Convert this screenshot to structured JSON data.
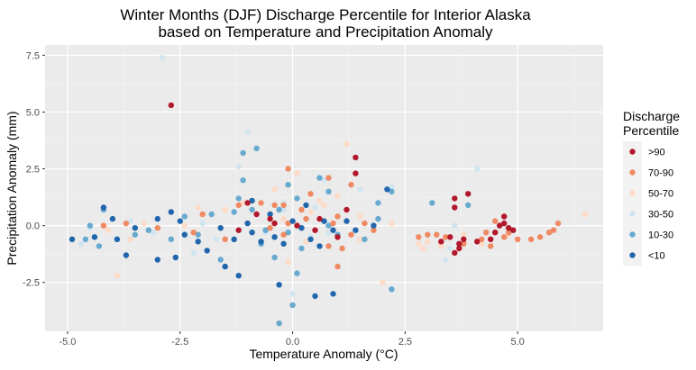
{
  "chart_data": {
    "type": "scatter",
    "title_line1": "Winter Months (DJF) Discharge Percentile for Interior Alaska",
    "title_line2": "based on Temperature and Precipitation Anomaly",
    "xlabel": "Temperature Anomaly (°C)",
    "ylabel": "Precipitation Anomaly (mm)",
    "xlim": [
      -5.5,
      6.9
    ],
    "ylim": [
      -4.65,
      7.95
    ],
    "x_ticks": [
      -5.0,
      -2.5,
      0.0,
      2.5,
      5.0
    ],
    "x_tick_labels": [
      "-5.0",
      "-2.5",
      "0.0",
      "2.5",
      "5.0"
    ],
    "y_ticks": [
      -2.5,
      0.0,
      2.5,
      5.0,
      7.5
    ],
    "y_tick_labels": [
      "-2.5",
      "0.0",
      "2.5",
      "5.0",
      "7.5"
    ],
    "grid": true,
    "legend": {
      "title_line1": "Discharge",
      "title_line2": "Percentile",
      "position": "right",
      "entries": [
        {
          "label": ">90",
          "color": "#b2182b"
        },
        {
          "label": "70-90",
          "color": "#ef8a62"
        },
        {
          "label": "50-70",
          "color": "#fddbc7"
        },
        {
          "label": "30-50",
          "color": "#d1e5f0"
        },
        {
          "label": "10-30",
          "color": "#67a9cf"
        },
        {
          "label": "<10",
          "color": "#2166ac"
        }
      ]
    },
    "colors": {
      "panel_background": "#ebebeb",
      "grid_major": "#ffffff",
      "grid_minor": "#f5f5f5"
    },
    "series": [
      {
        "name": ">90",
        "points": [
          [
            -2.7,
            5.3
          ],
          [
            1.4,
            3.0
          ],
          [
            1.4,
            2.3
          ],
          [
            -0.5,
            0.3
          ],
          [
            0.1,
            0.0
          ],
          [
            0.5,
            -0.2
          ],
          [
            0.6,
            0.3
          ],
          [
            1.0,
            -0.5
          ],
          [
            1.2,
            0.7
          ],
          [
            -0.4,
            0.1
          ],
          [
            -1.2,
            -0.2
          ],
          [
            3.6,
            1.2
          ],
          [
            3.6,
            0.8
          ],
          [
            3.9,
            1.4
          ],
          [
            3.6,
            -1.2
          ],
          [
            3.7,
            -1.0
          ],
          [
            3.5,
            -0.5
          ],
          [
            3.8,
            -0.6
          ],
          [
            4.1,
            -0.7
          ],
          [
            4.4,
            -0.6
          ],
          [
            4.5,
            -0.3
          ],
          [
            4.6,
            0.0
          ],
          [
            4.7,
            0.1
          ],
          [
            4.7,
            0.4
          ],
          [
            4.8,
            -0.1
          ],
          [
            4.9,
            -0.2
          ],
          [
            3.3,
            -0.7
          ],
          [
            3.7,
            -0.8
          ],
          [
            -0.8,
            0.5
          ],
          [
            -1.0,
            1.0
          ]
        ]
      },
      {
        "name": "70-90",
        "points": [
          [
            -0.1,
            2.5
          ],
          [
            0.8,
            2.1
          ],
          [
            0.4,
            1.4
          ],
          [
            1.3,
            1.8
          ],
          [
            -2.0,
            0.5
          ],
          [
            -1.2,
            0.9
          ],
          [
            -0.7,
            1.0
          ],
          [
            -0.4,
            0.9
          ],
          [
            0.2,
            0.7
          ],
          [
            0.3,
            0.3
          ],
          [
            0.9,
            0.1
          ],
          [
            1.0,
            0.4
          ],
          [
            1.6,
            0.1
          ],
          [
            1.8,
            -0.2
          ],
          [
            -0.1,
            0.1
          ],
          [
            -0.5,
            -0.1
          ],
          [
            0.8,
            -0.9
          ],
          [
            1.1,
            -1.0
          ],
          [
            1.0,
            -1.8
          ],
          [
            1.3,
            -0.4
          ],
          [
            -1.5,
            -0.6
          ],
          [
            -2.2,
            -0.3
          ],
          [
            -3.0,
            -0.1
          ],
          [
            2.8,
            -0.5
          ],
          [
            3.0,
            -0.4
          ],
          [
            3.2,
            -0.4
          ],
          [
            3.4,
            -0.5
          ],
          [
            3.8,
            -0.8
          ],
          [
            4.2,
            -0.6
          ],
          [
            4.4,
            -0.9
          ],
          [
            4.7,
            -0.5
          ],
          [
            4.8,
            -0.3
          ],
          [
            5.0,
            -0.6
          ],
          [
            5.3,
            -0.6
          ],
          [
            5.5,
            -0.5
          ],
          [
            5.7,
            -0.3
          ],
          [
            5.8,
            -0.2
          ],
          [
            5.9,
            0.1
          ],
          [
            4.3,
            -0.3
          ],
          [
            4.5,
            0.2
          ],
          [
            -4.2,
            0.0
          ],
          [
            -3.7,
            0.1
          ],
          [
            -0.2,
            -0.4
          ],
          [
            -0.2,
            0.9
          ]
        ]
      },
      {
        "name": "50-70",
        "points": [
          [
            1.2,
            3.6
          ],
          [
            0.4,
            0.6
          ],
          [
            0.1,
            2.3
          ],
          [
            -0.4,
            1.6
          ],
          [
            0.7,
            0.9
          ],
          [
            1.0,
            1.3
          ],
          [
            1.5,
            0.4
          ],
          [
            2.2,
            0.1
          ],
          [
            -2.1,
            0.8
          ],
          [
            -2.4,
            0.0
          ],
          [
            -3.3,
            0.1
          ],
          [
            -3.6,
            -0.6
          ],
          [
            -3.9,
            -2.2
          ],
          [
            -1.5,
            0.7
          ],
          [
            -0.2,
            0.3
          ],
          [
            0.3,
            -0.7
          ],
          [
            2.8,
            -0.8
          ],
          [
            3.0,
            -0.7
          ],
          [
            3.3,
            -0.9
          ],
          [
            3.8,
            -0.4
          ],
          [
            4.2,
            -0.8
          ],
          [
            4.8,
            -0.4
          ],
          [
            6.5,
            0.5
          ],
          [
            -0.1,
            -1.6
          ],
          [
            1.5,
            -0.6
          ],
          [
            2.0,
            -2.5
          ],
          [
            0.6,
            1.1
          ],
          [
            -1.1,
            1.0
          ],
          [
            -4.1,
            -0.2
          ],
          [
            2.9,
            -1.0
          ]
        ]
      },
      {
        "name": "30-50",
        "points": [
          [
            -2.9,
            7.4
          ],
          [
            -1.0,
            4.1
          ],
          [
            -1.2,
            2.6
          ],
          [
            0.7,
            2.0
          ],
          [
            1.5,
            1.6
          ],
          [
            2.2,
            1.7
          ],
          [
            4.1,
            2.5
          ],
          [
            3.6,
            0.0
          ],
          [
            3.5,
            -1.0
          ],
          [
            3.4,
            -1.5
          ],
          [
            -0.2,
            0.7
          ],
          [
            -0.6,
            -0.3
          ],
          [
            0.4,
            -0.5
          ],
          [
            -1.7,
            -0.6
          ],
          [
            -2.2,
            -1.2
          ],
          [
            -3.1,
            -0.3
          ],
          [
            -3.6,
            0.2
          ],
          [
            0.0,
            -3.0
          ],
          [
            -0.2,
            1.0
          ],
          [
            0.8,
            -0.3
          ],
          [
            -4.5,
            -0.1
          ],
          [
            -4.7,
            -0.8
          ],
          [
            -2.0,
            0.1
          ],
          [
            0.5,
            0.8
          ]
        ]
      },
      {
        "name": "10-30",
        "points": [
          [
            -1.1,
            3.2
          ],
          [
            -0.8,
            3.4
          ],
          [
            0.6,
            2.1
          ],
          [
            -1.1,
            2.0
          ],
          [
            -0.1,
            1.8
          ],
          [
            2.2,
            1.5
          ],
          [
            -1.2,
            1.2
          ],
          [
            -0.9,
            0.7
          ],
          [
            -0.3,
            0.7
          ],
          [
            0.1,
            1.2
          ],
          [
            0.8,
            1.5
          ],
          [
            1.9,
            1.0
          ],
          [
            3.1,
            1.0
          ],
          [
            3.9,
            0.9
          ],
          [
            -1.8,
            0.5
          ],
          [
            -2.4,
            0.4
          ],
          [
            -4.2,
            0.7
          ],
          [
            -4.5,
            0.0
          ],
          [
            -4.6,
            -0.6
          ],
          [
            -4.3,
            -0.9
          ],
          [
            -3.5,
            -0.4
          ],
          [
            -3.2,
            -0.2
          ],
          [
            -2.7,
            -0.6
          ],
          [
            -2.1,
            -0.4
          ],
          [
            -1.6,
            -1.5
          ],
          [
            -1.5,
            -1.8
          ],
          [
            -0.4,
            -1.4
          ],
          [
            0.1,
            -2.1
          ],
          [
            0.2,
            -1.0
          ],
          [
            -0.3,
            -4.3
          ],
          [
            0.0,
            -3.5
          ],
          [
            2.2,
            -2.8
          ],
          [
            0.8,
            0.0
          ],
          [
            1.0,
            -0.4
          ],
          [
            1.6,
            -0.6
          ],
          [
            1.9,
            0.3
          ],
          [
            -0.6,
            -0.2
          ],
          [
            -0.1,
            -0.3
          ],
          [
            -1.3,
            0.6
          ],
          [
            -0.7,
            -0.8
          ]
        ]
      },
      {
        "name": "<10",
        "points": [
          [
            -4.9,
            -0.6
          ],
          [
            -4.4,
            -0.5
          ],
          [
            -4.2,
            0.8
          ],
          [
            -4.0,
            0.3
          ],
          [
            -3.9,
            -0.6
          ],
          [
            -3.5,
            -0.1
          ],
          [
            -3.0,
            0.3
          ],
          [
            -2.7,
            0.6
          ],
          [
            -2.5,
            0.2
          ],
          [
            -2.4,
            -0.4
          ],
          [
            -2.1,
            -0.7
          ],
          [
            -1.9,
            -1.1
          ],
          [
            -1.6,
            -0.1
          ],
          [
            -1.3,
            -0.6
          ],
          [
            -1.0,
            0.1
          ],
          [
            -0.9,
            -0.3
          ],
          [
            -0.7,
            -0.7
          ],
          [
            -0.4,
            -0.5
          ],
          [
            -0.2,
            -0.8
          ],
          [
            0.0,
            0.2
          ],
          [
            0.2,
            -0.1
          ],
          [
            0.4,
            -0.6
          ],
          [
            0.6,
            -0.9
          ],
          [
            0.9,
            -0.2
          ],
          [
            1.2,
            0.2
          ],
          [
            1.4,
            -0.2
          ],
          [
            1.8,
            0.0
          ],
          [
            2.1,
            1.6
          ],
          [
            0.5,
            -3.1
          ],
          [
            0.9,
            -3.0
          ],
          [
            -0.3,
            -2.6
          ],
          [
            -1.5,
            -1.8
          ],
          [
            -3.7,
            -1.3
          ],
          [
            -3.0,
            -1.5
          ],
          [
            -2.6,
            -1.4
          ],
          [
            -1.2,
            -2.2
          ],
          [
            -0.9,
            1.1
          ],
          [
            0.3,
            0.9
          ],
          [
            -0.5,
            0.5
          ],
          [
            0.7,
            0.2
          ]
        ]
      }
    ]
  }
}
